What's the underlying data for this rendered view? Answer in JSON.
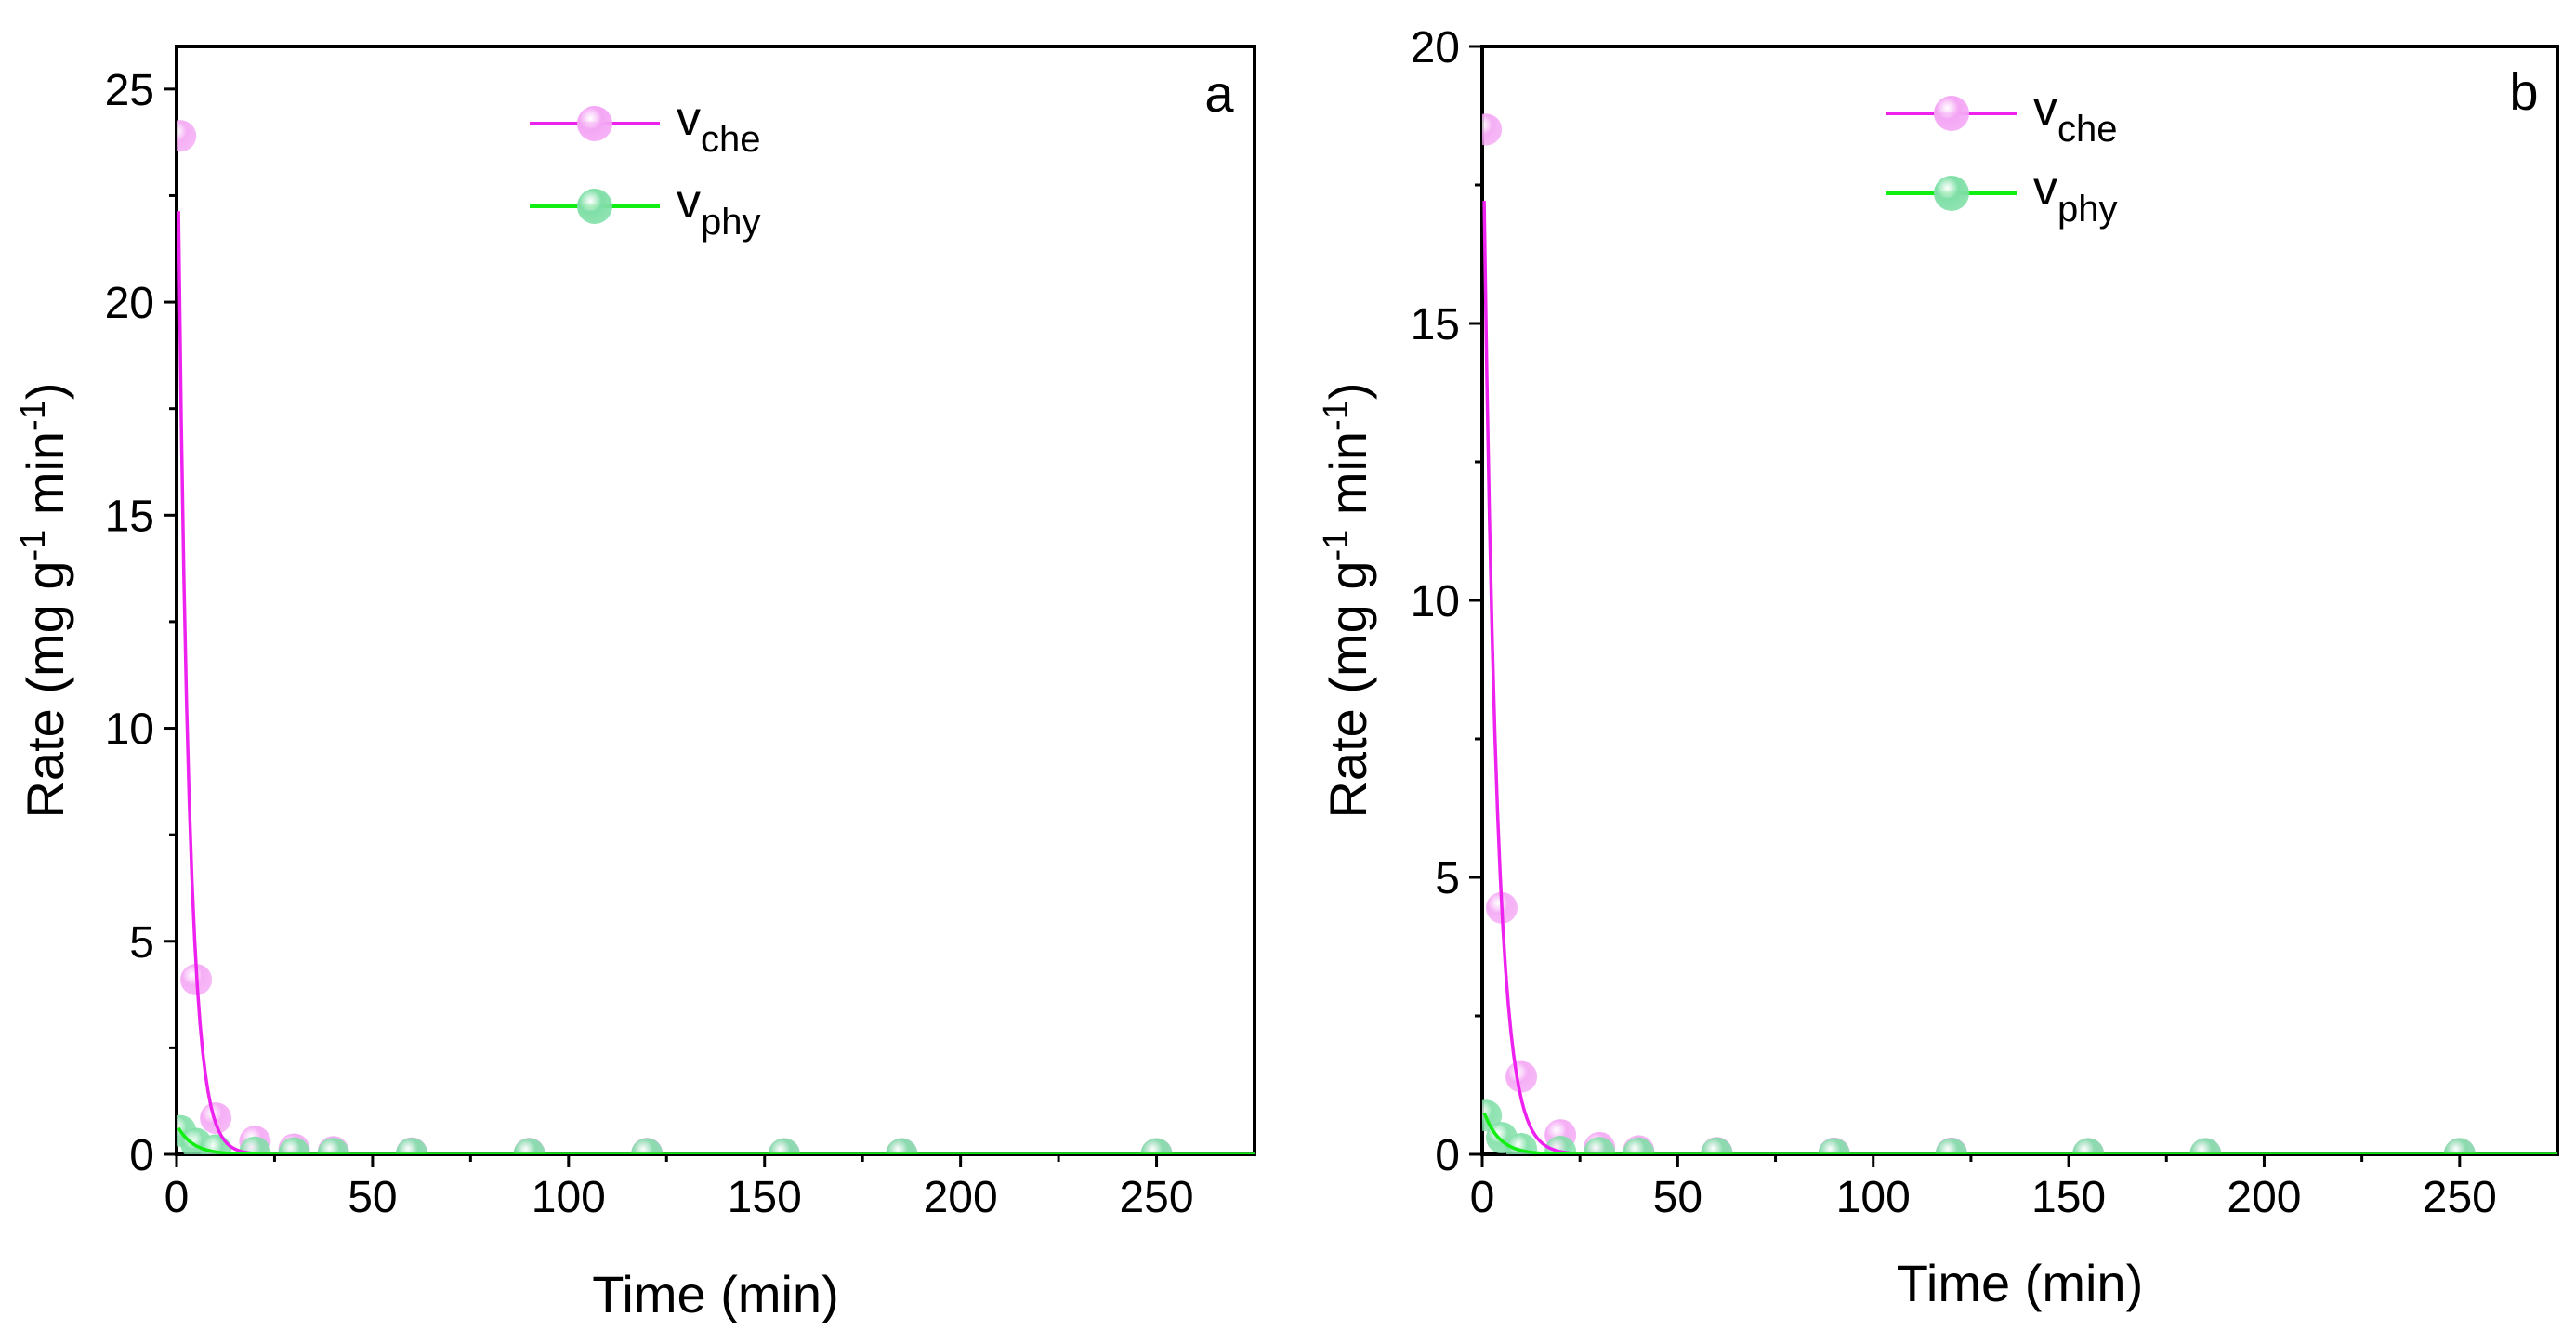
{
  "colors": {
    "che_line": "#ee22ee",
    "che_marker": "#f4a6f4",
    "phy_line": "#11ee11",
    "phy_marker": "#7fdfa6"
  },
  "chart_data": [
    {
      "type": "scatter",
      "panel_label": "a",
      "xlabel": "Time (min)",
      "ylabel": "Rate (mg g<sup>-1</sup> min<sup>-1</sup>)",
      "ylabel_parts": {
        "prefix": "Rate (mg g",
        "sup1": "-1",
        "middle": " min",
        "sup2": "-1",
        "suffix": ")"
      },
      "xlim": [
        0,
        275
      ],
      "ylim": [
        0,
        26
      ],
      "xticks": [
        0,
        50,
        100,
        150,
        200,
        250
      ],
      "yticks": [
        0,
        5,
        10,
        15,
        20,
        25
      ],
      "legend_position": "top-center",
      "series": [
        {
          "name": "v_che",
          "label_main": "v",
          "label_sub": "che",
          "color_key": "che",
          "points": {
            "x": [
              1,
              5,
              10,
              20,
              30,
              40,
              60,
              90,
              120,
              155,
              185,
              250
            ],
            "y": [
              23.9,
              4.1,
              0.85,
              0.3,
              0.12,
              0.06,
              0.03,
              0.02,
              0.02,
              0.01,
              0.01,
              0.01
            ]
          },
          "fit": {
            "a0": 26.5,
            "k": 0.36,
            "x_start": 0.5,
            "x_end": 275
          }
        },
        {
          "name": "v_phy",
          "label_main": "v",
          "label_sub": "phy",
          "color_key": "phy",
          "points": {
            "x": [
              1,
              5,
              10,
              20,
              30,
              40,
              60,
              90,
              120,
              155,
              185,
              250
            ],
            "y": [
              0.55,
              0.25,
              0.1,
              0.05,
              0.03,
              0.02,
              0.02,
              0.01,
              0.01,
              0.01,
              0.01,
              0.01
            ]
          },
          "fit": {
            "a0": 0.7,
            "k": 0.25,
            "x_start": 0.5,
            "x_end": 275
          }
        }
      ]
    },
    {
      "type": "scatter",
      "panel_label": "b",
      "xlabel": "Time (min)",
      "ylabel": "Rate (mg g<sup>-1</sup> min<sup>-1</sup>)",
      "ylabel_parts": {
        "prefix": "Rate (mg g",
        "sup1": "-1",
        "middle": " min",
        "sup2": "-1",
        "suffix": ")"
      },
      "xlim": [
        0,
        275
      ],
      "ylim": [
        0,
        20
      ],
      "xticks": [
        0,
        50,
        100,
        150,
        200,
        250
      ],
      "yticks": [
        0,
        5,
        10,
        15,
        20
      ],
      "legend_position": "top-center",
      "series": [
        {
          "name": "v_che",
          "label_main": "v",
          "label_sub": "che",
          "color_key": "che",
          "points": {
            "x": [
              1,
              5,
              10,
              20,
              30,
              40,
              60,
              90,
              120,
              155,
              185,
              250
            ],
            "y": [
              18.5,
              4.45,
              1.4,
              0.35,
              0.12,
              0.06,
              0.03,
              0.02,
              0.02,
              0.01,
              0.01,
              0.01
            ]
          },
          "fit": {
            "a0": 20.0,
            "k": 0.3,
            "x_start": 0.5,
            "x_end": 275
          }
        },
        {
          "name": "v_phy",
          "label_main": "v",
          "label_sub": "phy",
          "color_key": "phy",
          "points": {
            "x": [
              1,
              5,
              10,
              20,
              30,
              40,
              60,
              90,
              120,
              155,
              185,
              250
            ],
            "y": [
              0.7,
              0.3,
              0.1,
              0.05,
              0.03,
              0.02,
              0.02,
              0.01,
              0.01,
              0.01,
              0.01,
              0.01
            ]
          },
          "fit": {
            "a0": 0.85,
            "k": 0.25,
            "x_start": 0.5,
            "x_end": 275
          }
        }
      ]
    }
  ]
}
